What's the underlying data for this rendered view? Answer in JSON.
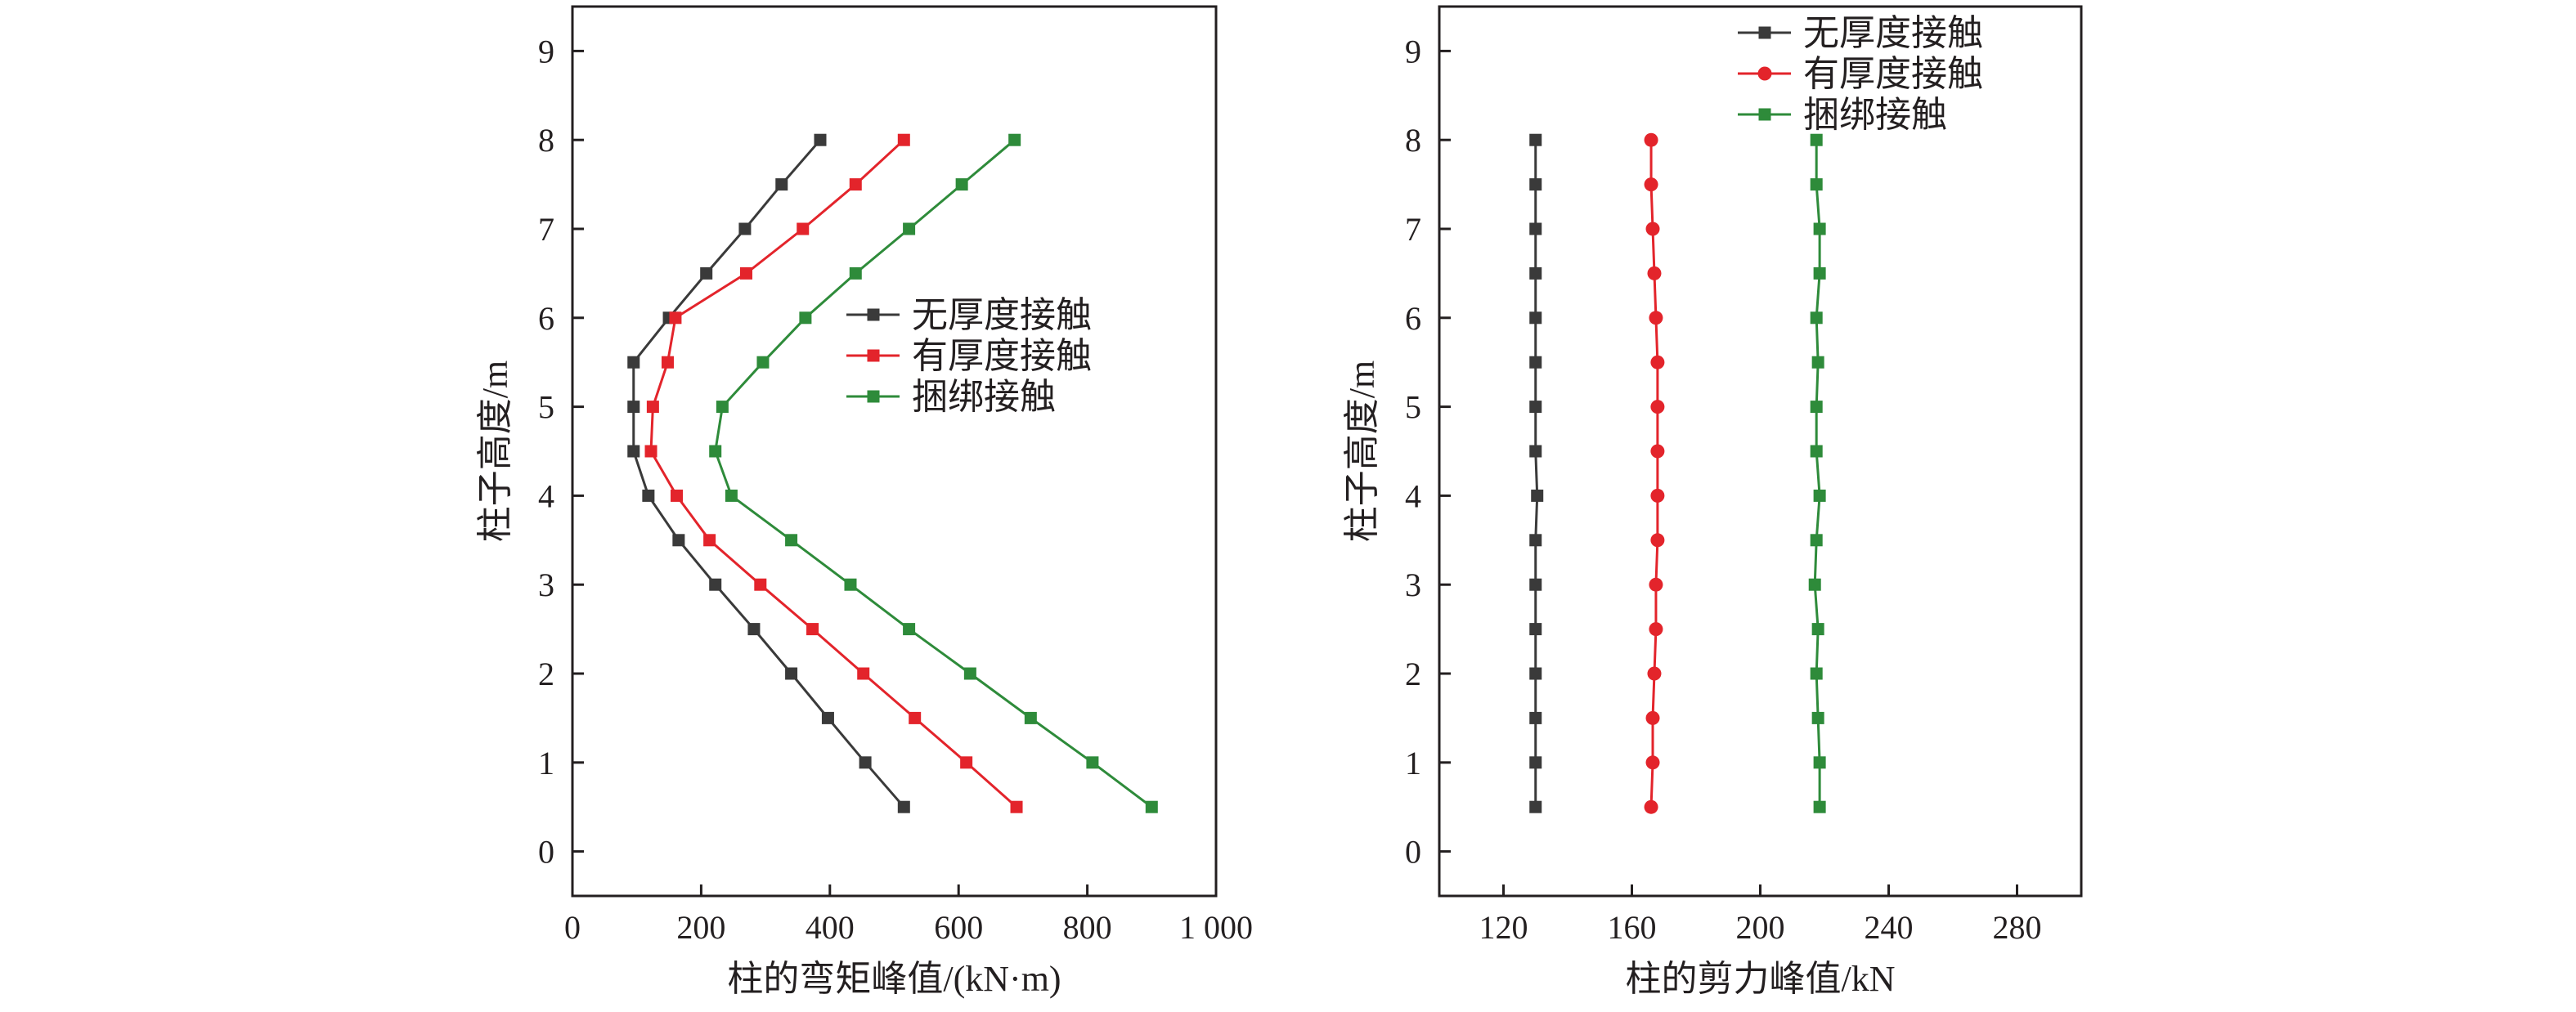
{
  "chart_data": [
    {
      "type": "line",
      "xlabel": "柱的弯矩峰值/(kN·m)",
      "ylabel": "柱子高度/m",
      "xlim": [
        0,
        1000
      ],
      "ylim": [
        -0.5,
        9.5
      ],
      "xticks": [
        0,
        200,
        400,
        600,
        800,
        1000
      ],
      "xtick_labels": [
        "0",
        "200",
        "400",
        "600",
        "800",
        "1 000"
      ],
      "yticks": [
        0,
        1,
        2,
        3,
        4,
        5,
        6,
        7,
        8,
        9
      ],
      "ytick_labels": [
        "0",
        "1",
        "2",
        "3",
        "4",
        "5",
        "6",
        "7",
        "8",
        "9"
      ],
      "grid": false,
      "legend_position": "middle-right",
      "y": [
        0.5,
        1,
        1.5,
        2,
        2.5,
        3,
        3.5,
        4,
        4.5,
        5,
        5.5,
        6,
        6.5,
        7,
        7.5,
        8
      ],
      "series": [
        {
          "name": "无厚度接触",
          "color": "#3a3a3a",
          "marker": "square",
          "x": [
            515,
            455,
            397,
            340,
            282,
            222,
            165,
            118,
            95,
            95,
            95,
            150,
            208,
            268,
            325,
            385
          ]
        },
        {
          "name": "有厚度接触",
          "color": "#e3242b",
          "marker": "square",
          "x": [
            690,
            612,
            532,
            452,
            373,
            292,
            213,
            162,
            122,
            125,
            148,
            160,
            270,
            358,
            440,
            515
          ]
        },
        {
          "name": "捆绑接触",
          "color": "#2e8b3a",
          "marker": "square",
          "x": [
            900,
            808,
            712,
            618,
            523,
            432,
            340,
            247,
            222,
            233,
            296,
            362,
            440,
            523,
            605,
            687
          ]
        }
      ]
    },
    {
      "type": "line",
      "xlabel": "柱的剪力峰值/kN",
      "ylabel": "柱子高度/m",
      "xlim": [
        100,
        300
      ],
      "ylim": [
        -0.5,
        9.5
      ],
      "xticks": [
        120,
        160,
        200,
        240,
        280
      ],
      "xtick_labels": [
        "120",
        "160",
        "200",
        "240",
        "280"
      ],
      "yticks": [
        0,
        1,
        2,
        3,
        4,
        5,
        6,
        7,
        8,
        9
      ],
      "ytick_labels": [
        "0",
        "1",
        "2",
        "3",
        "4",
        "5",
        "6",
        "7",
        "8",
        "9"
      ],
      "grid": false,
      "legend_position": "top-right",
      "y": [
        0.5,
        1,
        1.5,
        2,
        2.5,
        3,
        3.5,
        4,
        4.5,
        5,
        5.5,
        6,
        6.5,
        7,
        7.5,
        8
      ],
      "series": [
        {
          "name": "无厚度接触",
          "color": "#3a3a3a",
          "marker": "square",
          "x": [
            130,
            130,
            130,
            130,
            130,
            130,
            130,
            130.5,
            130,
            130,
            130,
            130,
            130,
            130,
            130,
            130
          ]
        },
        {
          "name": "有厚度接触",
          "color": "#e3242b",
          "marker": "circle",
          "x": [
            166,
            166.5,
            166.5,
            167,
            167.5,
            167.5,
            168,
            168,
            168,
            168,
            168,
            167.5,
            167,
            166.5,
            166,
            166
          ]
        },
        {
          "name": "捆绑接触",
          "color": "#2e8b3a",
          "marker": "square",
          "x": [
            218.5,
            218.5,
            218,
            217.5,
            218,
            217,
            217.5,
            218.5,
            217.5,
            217.5,
            218,
            217.5,
            218.5,
            218.5,
            217.5,
            217.5
          ]
        }
      ]
    }
  ]
}
